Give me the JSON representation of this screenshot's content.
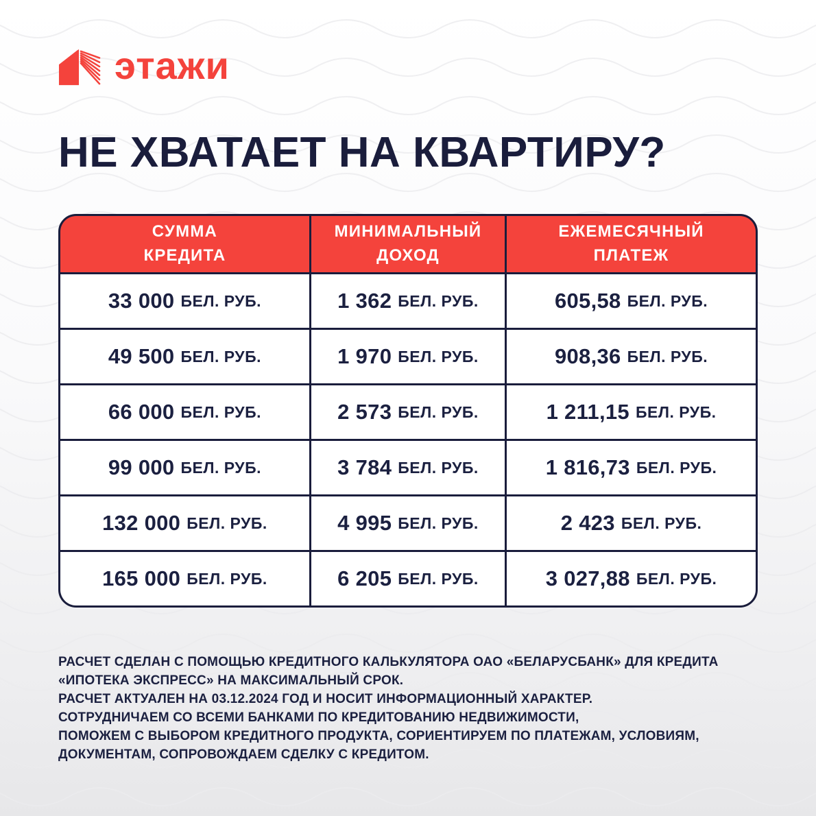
{
  "brand": {
    "logo_text": "этажи",
    "logo_icon": "etazhi-house-icon"
  },
  "title": "НЕ ХВАТАЕТ НА КВАРТИРУ?",
  "chart_data": {
    "type": "table",
    "title": "НЕ ХВАТАЕТ НА КВАРТИРУ?",
    "columns": [
      "СУММА КРЕДИТА",
      "МИНИМАЛЬНЫЙ ДОХОД",
      "ЕЖЕМЕСЯЧНЫЙ ПЛАТЕЖ"
    ],
    "unit_label": "БЕЛ. РУБ.",
    "rows": [
      [
        "33 000",
        "1 362",
        "605,58"
      ],
      [
        "49 500",
        "1 970",
        "908,36"
      ],
      [
        "66 000",
        "2 573",
        "1 211,15"
      ],
      [
        "99 000",
        "3 784",
        "1 816,73"
      ],
      [
        "132 000",
        "4 995",
        "2 423"
      ],
      [
        "165 000",
        "6 205",
        "3 027,88"
      ]
    ]
  },
  "footer": {
    "lines": [
      "РАСЧЕТ СДЕЛАН С ПОМОЩЬЮ КРЕДИТНОГО КАЛЬКУЛЯТОРА ОАО «БЕЛАРУСБАНК» ДЛЯ КРЕДИТА",
      "«ИПОТЕКА ЭКСПРЕСС» НА МАКСИМАЛЬНЫЙ СРОК.",
      "РАСЧЕТ АКТУАЛЕН НА 03.12.2024 ГОД И НОСИТ ИНФОРМАЦИОННЫЙ ХАРАКТЕР.",
      "СОТРУДНИЧАЕМ СО ВСЕМИ БАНКАМИ ПО КРЕДИТОВАНИЮ НЕДВИЖИМОСТИ,",
      "ПОМОЖЕМ С ВЫБОРОМ КРЕДИТНОГО ПРОДУКТА, СОРИЕНТИРУЕМ ПО ПЛАТЕЖАМ, УСЛОВИЯМ,",
      "ДОКУМЕНТАМ, СОПРОВОЖДАЕМ СДЕЛКУ С КРЕДИТОМ."
    ]
  },
  "colors": {
    "brand_red": "#F4433C",
    "navy": "#1A1D3C",
    "table_header_text": "#FFFFFF",
    "table_cell_bg": "#FFFFFF",
    "background_top": "#FFFFFF",
    "background_bottom": "#E7E7E9"
  }
}
